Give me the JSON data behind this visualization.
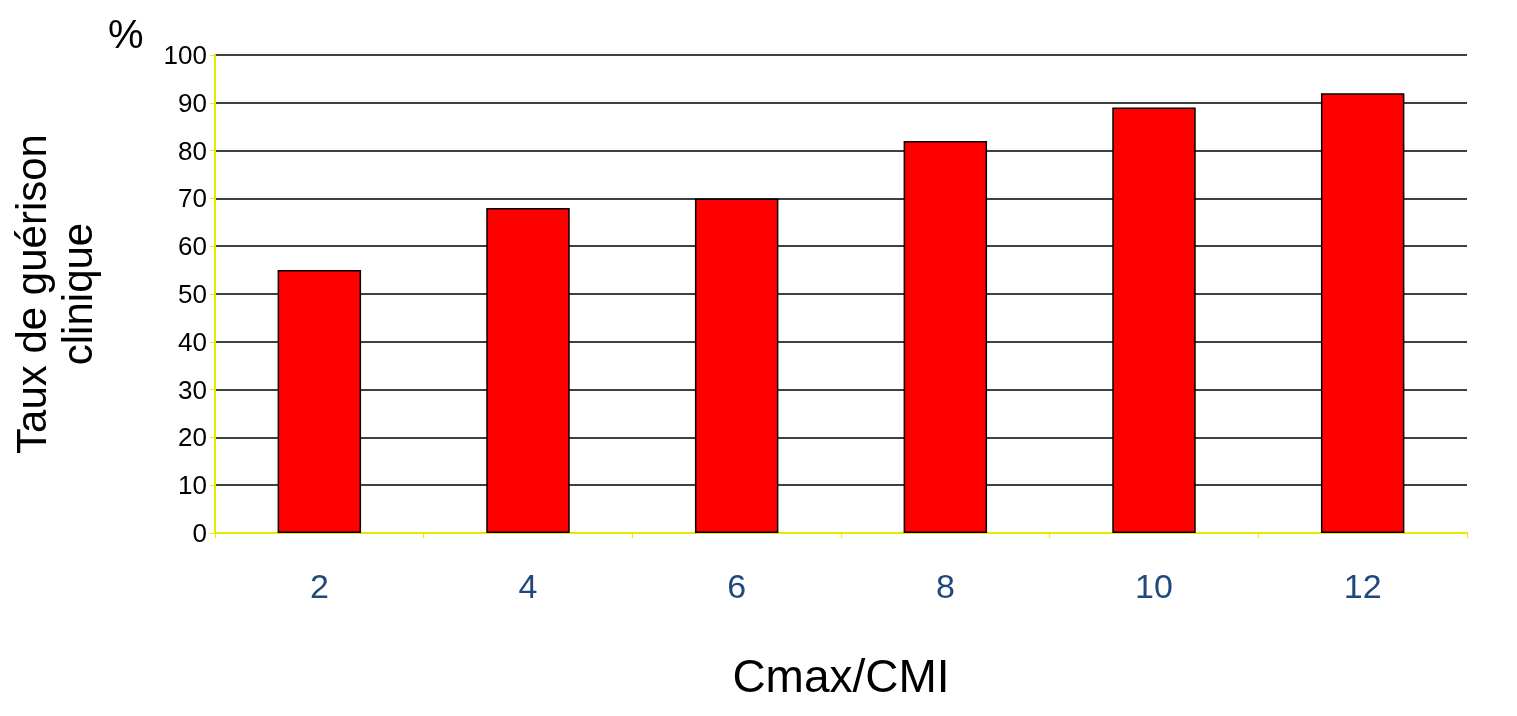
{
  "chart_data": {
    "type": "bar",
    "xlabel": "Cmax/CMI",
    "ylabel": "Taux de guérison\nclinique",
    "annotations": [
      "%"
    ],
    "categories": [
      "2",
      "4",
      "6",
      "8",
      "10",
      "12"
    ],
    "values": [
      55,
      68,
      70,
      82,
      89,
      92
    ],
    "color": "#ff0000",
    "ylim": [
      0,
      100
    ],
    "yticks": [
      0,
      10,
      20,
      30,
      40,
      50,
      60,
      70,
      80,
      90,
      100
    ],
    "grid": "y"
  }
}
